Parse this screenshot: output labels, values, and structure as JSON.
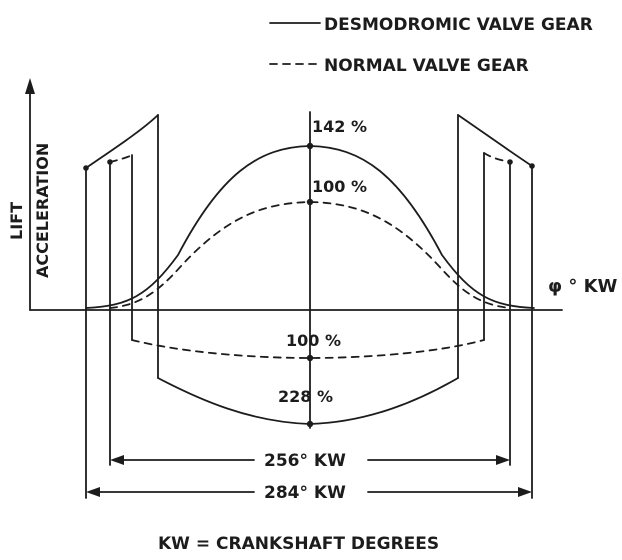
{
  "legend": {
    "solid_label": "DESMODROMIC VALVE GEAR",
    "dashed_label": "NORMAL VALVE GEAR"
  },
  "axes": {
    "y_label_lift": "LIFT",
    "y_label_acceleration": "ACCELERATION",
    "x_label": "φ ° KW"
  },
  "annotations": {
    "desmo_peak": "142 %",
    "normal_peak": "100 %",
    "normal_negative": "100 %",
    "desmo_negative": "228 %",
    "span_inner": "256° KW",
    "span_outer": "284° KW"
  },
  "footnote": "KW = CRANKSHAFT  DEGREES",
  "colors": {
    "ink": "#1c1c1c",
    "paper": "#ffffff"
  }
}
